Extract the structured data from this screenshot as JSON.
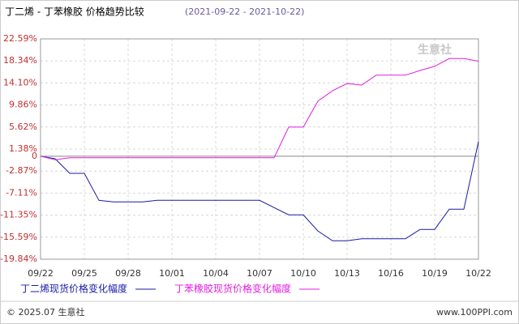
{
  "chart_data": {
    "type": "line",
    "title": "丁二烯 - 丁苯橡胶 价格趋势比较",
    "subtitle": "(2021-09-22 - 2021-10-22)",
    "categories": [
      "09/22",
      null,
      null,
      "09/25",
      null,
      null,
      "09/28",
      null,
      null,
      "10/01",
      null,
      null,
      "10/04",
      null,
      null,
      "10/07",
      null,
      null,
      "10/10",
      null,
      null,
      "10/13",
      null,
      null,
      "10/16",
      null,
      null,
      "10/19",
      null,
      null,
      "10/22"
    ],
    "series": [
      {
        "name": "丁二烯现货价格变化幅度",
        "color": "#1a1aa6",
        "values": [
          0,
          -0.5,
          -3.3,
          -3.3,
          -8.5,
          -8.8,
          -8.8,
          -8.8,
          -8.5,
          -8.5,
          -8.5,
          -8.5,
          -8.5,
          -8.5,
          -8.5,
          -8.5,
          -9.9,
          -11.3,
          -11.3,
          -14.4,
          -16.3,
          -16.3,
          -15.9,
          -15.9,
          -15.9,
          -15.9,
          -14.1,
          -14.1,
          -10.2,
          -10.2,
          2.8
        ]
      },
      {
        "name": "丁苯橡胶现货价格变化幅度",
        "color": "#e020e0",
        "values": [
          0,
          -0.7,
          -0.3,
          -0.3,
          -0.3,
          -0.3,
          -0.3,
          -0.3,
          -0.3,
          -0.3,
          -0.3,
          -0.3,
          -0.3,
          -0.3,
          -0.3,
          -0.3,
          -0.3,
          5.6,
          5.6,
          10.6,
          12.6,
          14.0,
          13.7,
          15.6,
          15.6,
          15.6,
          16.5,
          17.3,
          18.8,
          18.8,
          18.3
        ]
      }
    ],
    "ylim": [
      -19.84,
      22.59
    ],
    "yticks": [
      {
        "value": 22.59,
        "label": "22.59%"
      },
      {
        "value": 18.34,
        "label": "18.34%"
      },
      {
        "value": 14.1,
        "label": "14.10%"
      },
      {
        "value": 9.86,
        "label": "9.86%"
      },
      {
        "value": 5.62,
        "label": "5.62%"
      },
      {
        "value": 1.38,
        "label": "1.38%"
      },
      {
        "value": -2.87,
        "label": "-2.87%"
      },
      {
        "value": -7.11,
        "label": "-7.11%"
      },
      {
        "value": -11.35,
        "label": "-11.35%"
      },
      {
        "value": -15.59,
        "label": "-15.59%"
      },
      {
        "value": -19.84,
        "label": "-19.84%"
      }
    ],
    "zero_label": 0,
    "grid": true,
    "watermark": "生意社",
    "footer_left": "© 2025.07 生意社",
    "footer_right": "www.100PPI.com"
  }
}
